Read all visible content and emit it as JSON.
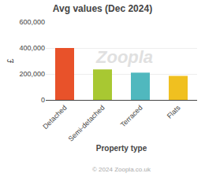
{
  "chart_data": {
    "type": "bar",
    "title": "Avg values (Dec 2024)",
    "categories": [
      "Detached",
      "Semi-detached",
      "Terraced",
      "Flats"
    ],
    "values": [
      400000,
      235000,
      210000,
      185000
    ],
    "colors": [
      "#e8522a",
      "#a8c832",
      "#50b8be",
      "#f0c020"
    ],
    "ylabel": "£",
    "xlabel": "Property type",
    "ylim": [
      0,
      600000
    ],
    "yticks": [
      0,
      {
        "value": 200000,
        "label": "200,000"
      },
      {
        "value": 400000,
        "label": "400,000"
      },
      {
        "value": 600000,
        "label": "600,000"
      }
    ],
    "grid": true,
    "annotations": [
      "Zoopla",
      "© 2024 Zoopla.co.uk"
    ]
  }
}
